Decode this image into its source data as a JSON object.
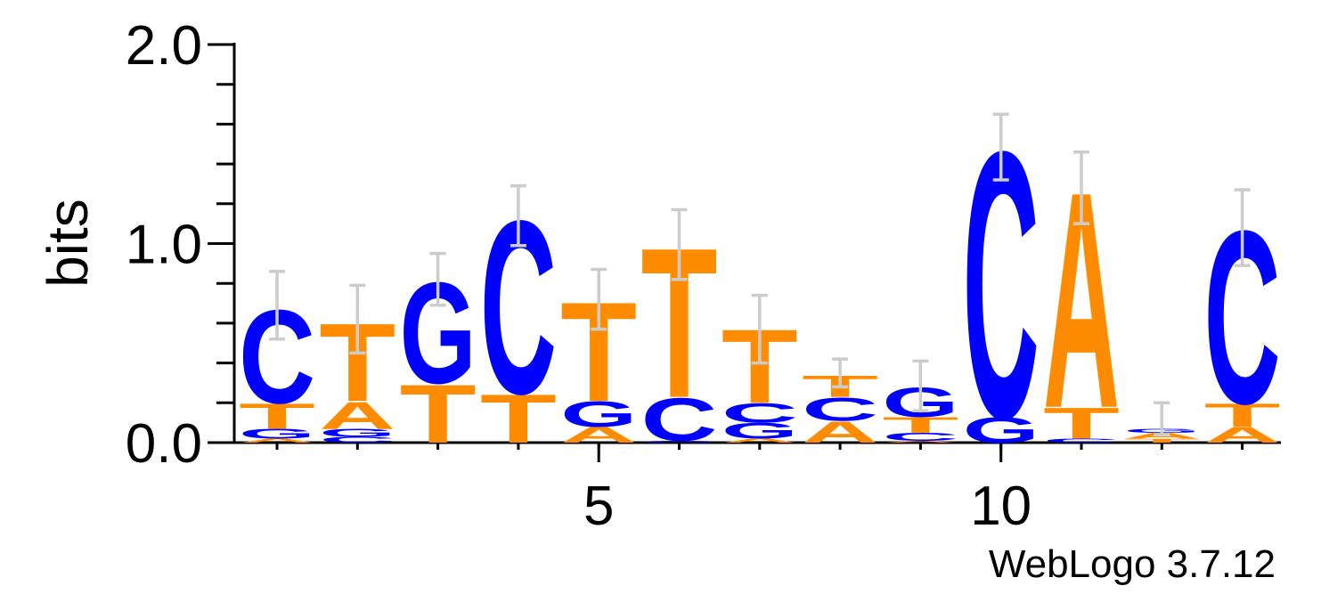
{
  "chart_data": {
    "type": "sequence-logo",
    "ylabel": "bits",
    "ylim": [
      0,
      2
    ],
    "y_ticks": [
      "0.0",
      "1.0",
      "2.0"
    ],
    "x_ticks": [
      "5",
      "10"
    ],
    "x_tick_positions": [
      5,
      10
    ],
    "alphabet_colors": {
      "A": "#FF8C00",
      "T": "#FF8C00",
      "C": "#0000FF",
      "G": "#0000FF"
    },
    "positions": [
      {
        "pos": 1,
        "error": [
          0.52,
          0.86
        ],
        "stack": [
          {
            "letter": "A",
            "bits": 0.02
          },
          {
            "letter": "G",
            "bits": 0.05
          },
          {
            "letter": "T",
            "bits": 0.13
          },
          {
            "letter": "C",
            "bits": 0.48
          }
        ]
      },
      {
        "pos": 2,
        "error": [
          0.45,
          0.79
        ],
        "stack": [
          {
            "letter": "C",
            "bits": 0.03
          },
          {
            "letter": "G",
            "bits": 0.04
          },
          {
            "letter": "A",
            "bits": 0.14
          },
          {
            "letter": "T",
            "bits": 0.4
          }
        ]
      },
      {
        "pos": 3,
        "error": [
          0.69,
          0.95
        ],
        "stack": [
          {
            "letter": "T",
            "bits": 0.3
          },
          {
            "letter": "G",
            "bits": 0.52
          }
        ]
      },
      {
        "pos": 4,
        "error": [
          0.99,
          1.29
        ],
        "stack": [
          {
            "letter": "T",
            "bits": 0.25
          },
          {
            "letter": "C",
            "bits": 0.89
          }
        ]
      },
      {
        "pos": 5,
        "error": [
          0.57,
          0.87
        ],
        "stack": [
          {
            "letter": "A",
            "bits": 0.08
          },
          {
            "letter": "G",
            "bits": 0.13
          },
          {
            "letter": "T",
            "bits": 0.51
          }
        ]
      },
      {
        "pos": 6,
        "error": [
          0.82,
          1.17
        ],
        "stack": [
          {
            "letter": "G",
            "bits": 0.01
          },
          {
            "letter": "C",
            "bits": 0.22
          },
          {
            "letter": "T",
            "bits": 0.77
          }
        ]
      },
      {
        "pos": 7,
        "error": [
          0.4,
          0.74
        ],
        "stack": [
          {
            "letter": "A",
            "bits": 0.02
          },
          {
            "letter": "G",
            "bits": 0.08
          },
          {
            "letter": "C",
            "bits": 0.1
          },
          {
            "letter": "T",
            "bits": 0.38
          }
        ]
      },
      {
        "pos": 8,
        "error": [
          0.28,
          0.42
        ],
        "stack": [
          {
            "letter": "A",
            "bits": 0.11
          },
          {
            "letter": "C",
            "bits": 0.12
          },
          {
            "letter": "T",
            "bits": 0.11
          }
        ]
      },
      {
        "pos": 9,
        "error": [
          0.16,
          0.41
        ],
        "stack": [
          {
            "letter": "A",
            "bits": 0.01
          },
          {
            "letter": "C",
            "bits": 0.04
          },
          {
            "letter": "T",
            "bits": 0.08
          },
          {
            "letter": "G",
            "bits": 0.15
          }
        ]
      },
      {
        "pos": 10,
        "error": [
          1.32,
          1.65
        ],
        "stack": [
          {
            "letter": "G",
            "bits": 0.13
          },
          {
            "letter": "C",
            "bits": 1.37
          }
        ]
      },
      {
        "pos": 11,
        "error": [
          1.1,
          1.46
        ],
        "stack": [
          {
            "letter": "C",
            "bits": 0.02
          },
          {
            "letter": "T",
            "bits": 0.16
          },
          {
            "letter": "A",
            "bits": 1.11
          }
        ]
      },
      {
        "pos": 12,
        "error": [
          0.04,
          0.2
        ],
        "stack": [
          {
            "letter": "T",
            "bits": 0.02
          },
          {
            "letter": "A",
            "bits": 0.03
          },
          {
            "letter": "G",
            "bits": 0.02
          }
        ]
      },
      {
        "pos": 13,
        "error": [
          0.89,
          1.27
        ],
        "stack": [
          {
            "letter": "A",
            "bits": 0.08
          },
          {
            "letter": "T",
            "bits": 0.12
          },
          {
            "letter": "C",
            "bits": 0.89
          }
        ]
      }
    ]
  },
  "footer": {
    "credit": "WebLogo 3.7.12"
  }
}
